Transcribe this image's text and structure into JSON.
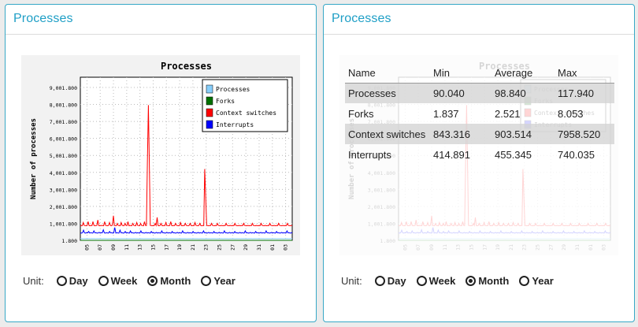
{
  "panels": [
    {
      "title": "Processes",
      "unit": {
        "label": "Unit:",
        "options": [
          "Day",
          "Week",
          "Month",
          "Year"
        ],
        "selected": "Month"
      }
    },
    {
      "title": "Processes",
      "unit": {
        "label": "Unit:",
        "options": [
          "Day",
          "Week",
          "Month",
          "Year"
        ],
        "selected": "Month"
      },
      "table": {
        "headers": [
          "Name",
          "Min",
          "Average",
          "Max"
        ],
        "rows": [
          [
            "Processes",
            "90.040",
            "98.840",
            "117.940"
          ],
          [
            "Forks",
            "1.837",
            "2.521",
            "8.053"
          ],
          [
            "Context switches",
            "843.316",
            "903.514",
            "7958.520"
          ],
          [
            "Interrupts",
            "414.891",
            "455.345",
            "740.035"
          ]
        ]
      }
    }
  ],
  "chart_data": {
    "type": "line",
    "title": "Processes",
    "xlabel": "",
    "ylabel": "Number of processes",
    "x_ticks": [
      "05",
      "07",
      "09",
      "11",
      "13",
      "15",
      "17",
      "19",
      "21",
      "23",
      "25",
      "27",
      "29",
      "31",
      "01",
      "03"
    ],
    "y_ticks": [
      "1.800",
      "1,001.800",
      "2,001.800",
      "3,001.800",
      "4,001.800",
      "5,001.800",
      "6,001.800",
      "7,001.800",
      "8,001.800",
      "9,001.800"
    ],
    "ylim": [
      1.8,
      9601.8
    ],
    "grid": true,
    "legend_position": "top-right",
    "series": [
      {
        "name": "Processes",
        "color": "#87cefa",
        "values": [
          100,
          98,
          97,
          96,
          99,
          101,
          98,
          100,
          97,
          96,
          99,
          100,
          98,
          97,
          96,
          99,
          101,
          98,
          100,
          97,
          96,
          99,
          100,
          98,
          97,
          96,
          99,
          101,
          98,
          100,
          97,
          96,
          99,
          100,
          98,
          97,
          96,
          99,
          101,
          98,
          100,
          97,
          96,
          99,
          100,
          98,
          97,
          96,
          99,
          101,
          98,
          100,
          97,
          96,
          99,
          100,
          98,
          97,
          96,
          99,
          101,
          98,
          100,
          97,
          96,
          99,
          100,
          98,
          97,
          96,
          99,
          101,
          98,
          100,
          97,
          96,
          99,
          100,
          98,
          97,
          96,
          99,
          101,
          98,
          100,
          97,
          96,
          99,
          100,
          98,
          97,
          96,
          99,
          101,
          98,
          100,
          97,
          96,
          99,
          100,
          98,
          97,
          96,
          99,
          101,
          98,
          100,
          97,
          96,
          99,
          100,
          98,
          97,
          96,
          99,
          101,
          98,
          100,
          97,
          96,
          99,
          100,
          98,
          97,
          96,
          99,
          101,
          98,
          100,
          97,
          96,
          99,
          100,
          98,
          97,
          96,
          99,
          101,
          98,
          100,
          97,
          96,
          99,
          100,
          98,
          97,
          96,
          99,
          101,
          98,
          100,
          97,
          96,
          99,
          100,
          98,
          97,
          96,
          99,
          101,
          98,
          100,
          97,
          96,
          99,
          100,
          98,
          97,
          96,
          99,
          101,
          98,
          100,
          97,
          96,
          99,
          100,
          98,
          97,
          96,
          99,
          101,
          98,
          100,
          97,
          96,
          99,
          100,
          98,
          97,
          96,
          99,
          101,
          98
        ]
      },
      {
        "name": "Forks",
        "color": "#007000",
        "values": [
          2,
          2,
          3,
          2,
          2,
          3,
          2,
          2,
          3,
          2,
          2,
          3,
          2,
          2,
          3,
          2,
          2,
          3,
          2,
          2,
          3,
          2,
          2,
          3,
          2,
          2,
          3,
          2,
          2,
          3,
          2,
          2,
          3,
          2,
          2,
          3,
          2,
          2,
          3,
          2,
          2,
          3,
          2,
          2,
          3,
          2,
          2,
          3,
          2,
          2,
          3,
          2,
          2,
          3,
          2,
          2,
          3,
          2,
          2,
          3,
          2,
          2,
          3,
          2,
          2,
          3,
          2,
          2,
          3,
          2,
          2,
          3,
          2,
          2,
          3,
          2,
          2,
          3,
          2,
          2,
          3,
          2,
          2,
          3,
          2,
          2,
          3,
          2,
          2,
          3,
          2,
          2,
          3,
          2,
          2,
          3,
          2,
          2,
          3,
          2,
          2,
          3,
          2,
          2,
          3,
          2,
          2,
          3,
          2,
          2,
          3,
          2,
          2,
          3,
          2,
          2,
          3,
          2,
          2,
          3,
          2,
          2,
          3,
          2,
          2,
          3,
          2,
          2,
          3,
          2,
          2,
          3,
          2,
          2,
          3,
          2,
          2,
          3,
          2,
          2,
          3,
          2,
          2,
          3,
          2,
          2,
          3,
          2,
          2,
          3,
          2,
          2,
          3,
          2,
          2,
          3,
          2,
          2,
          3,
          2,
          2,
          3,
          2,
          2,
          3,
          2,
          2,
          3,
          2,
          2,
          3,
          2,
          2,
          3,
          2,
          2,
          3,
          2,
          2,
          3,
          2,
          2,
          3,
          2,
          2,
          3,
          2,
          2,
          3,
          2,
          2,
          3,
          2,
          2,
          3,
          2,
          2,
          3,
          2,
          2,
          3,
          2,
          2,
          3,
          2,
          2
        ]
      },
      {
        "name": "Context switches",
        "color": "#ff0000",
        "values": [
          880,
          860,
          870,
          1050,
          880,
          870,
          860,
          880,
          1100,
          870,
          860,
          880,
          870,
          1100,
          880,
          860,
          870,
          880,
          1200,
          870,
          860,
          880,
          870,
          880,
          860,
          1100,
          880,
          870,
          860,
          880,
          1050,
          870,
          860,
          900,
          1450,
          880,
          870,
          860,
          1000,
          880,
          870,
          860,
          1050,
          880,
          870,
          860,
          1000,
          880,
          870,
          1100,
          860,
          880,
          870,
          860,
          1000,
          880,
          870,
          860,
          1050,
          880,
          870,
          860,
          1000,
          880,
          870,
          860,
          1100,
          880,
          870,
          4500,
          7958,
          4500,
          880,
          870,
          860,
          880,
          870,
          1000,
          880,
          1350,
          870,
          860,
          880,
          1000,
          870,
          860,
          880,
          870,
          1050,
          880,
          870,
          860,
          880,
          1100,
          870,
          860,
          880,
          870,
          1000,
          880,
          870,
          860,
          880,
          1050,
          870,
          860,
          880,
          870,
          1000,
          880,
          870,
          860,
          880,
          1000,
          870,
          860,
          880,
          870,
          1050,
          880,
          870,
          860,
          880,
          1000,
          870,
          860,
          880,
          870,
          4200,
          2500,
          880,
          870,
          860,
          880,
          870,
          1000,
          880,
          870,
          860,
          880,
          870,
          1000,
          880,
          870,
          860,
          880,
          870,
          860,
          880,
          870,
          1000,
          880,
          870,
          860,
          880,
          870,
          860,
          880,
          870,
          1000,
          880,
          870,
          860,
          880,
          870,
          860,
          880,
          870,
          1000,
          880,
          870,
          860,
          880,
          870,
          860,
          880,
          870,
          1000,
          880,
          870,
          860,
          880,
          870,
          860,
          880,
          870,
          1000,
          880,
          870,
          860,
          880,
          870,
          860,
          880,
          870,
          1000,
          880,
          870,
          860,
          880,
          870,
          860,
          880,
          870,
          1000,
          880,
          870,
          860,
          880,
          870,
          860,
          880,
          870,
          1000,
          880,
          870,
          860,
          880,
          870
        ]
      },
      {
        "name": "Interrupts",
        "color": "#0000ff",
        "values": [
          440,
          430,
          450,
          600,
          440,
          430,
          450,
          440,
          520,
          430,
          450,
          440,
          430,
          560,
          440,
          450,
          430,
          440,
          470,
          430,
          450,
          440,
          620,
          440,
          430,
          450,
          440,
          430,
          520,
          440,
          450,
          430,
          440,
          760,
          430,
          450,
          440,
          430,
          600,
          440,
          450,
          430,
          440,
          520,
          430,
          450,
          440,
          430,
          560,
          440,
          450,
          430,
          440,
          470,
          430,
          450,
          440,
          430,
          560,
          440,
          450,
          430,
          440,
          470,
          430,
          450,
          440,
          430,
          520,
          440,
          450,
          430,
          440,
          470,
          430,
          450,
          440,
          430,
          560,
          440,
          450,
          430,
          440,
          470,
          430,
          450,
          440,
          430,
          520,
          440,
          450,
          430,
          440,
          470,
          430,
          450,
          440,
          430,
          560,
          440,
          450,
          430,
          440,
          470,
          430,
          450,
          440,
          430,
          520,
          440,
          450,
          430,
          440,
          470,
          430,
          450,
          440,
          430,
          560,
          440,
          450,
          430,
          440,
          470,
          430,
          450,
          440,
          430,
          520,
          440,
          450,
          430,
          440,
          470,
          430,
          450,
          440,
          430,
          560,
          440,
          450,
          430,
          440,
          470,
          430,
          450,
          440,
          430,
          520,
          440,
          450,
          430,
          440,
          470,
          430,
          450,
          440,
          430,
          560,
          440,
          450,
          430,
          440,
          470,
          430,
          450,
          440,
          430,
          520,
          440,
          450,
          430,
          440,
          470,
          430,
          450,
          440,
          430,
          560,
          440,
          450,
          430,
          440,
          470,
          430,
          450,
          440,
          430,
          520,
          440,
          450,
          430,
          440,
          470,
          430,
          450,
          440,
          430,
          560,
          440,
          450,
          430,
          440,
          470
        ]
      }
    ]
  }
}
